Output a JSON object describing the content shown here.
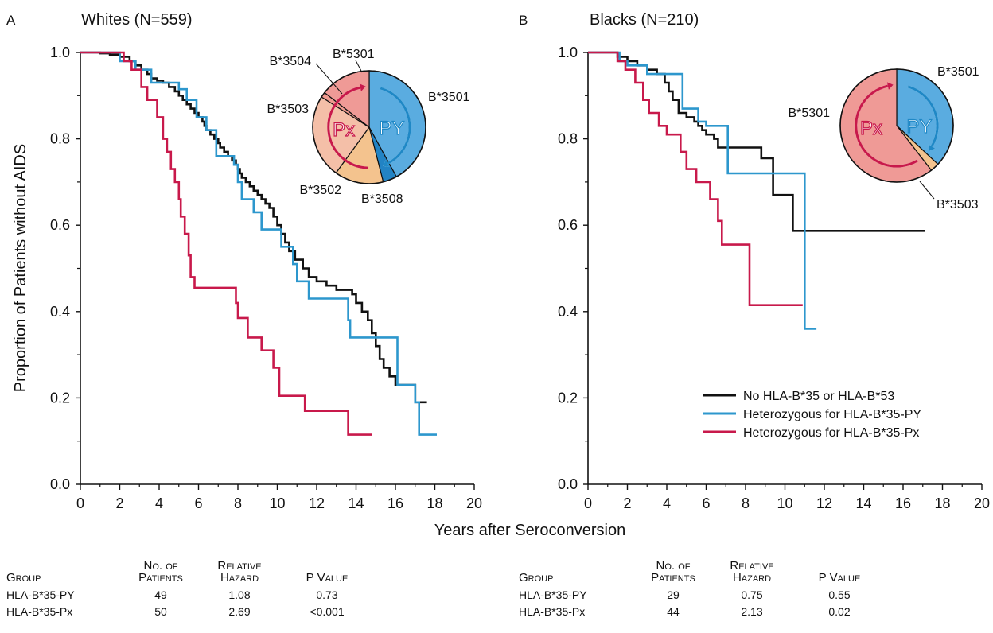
{
  "shared": {
    "ylabel": "Proportion of Patients without AIDS",
    "xlabel": "Years after Seroconversion"
  },
  "legend": {
    "items": [
      {
        "label": "No HLA-B*35 or HLA-B*53",
        "color": "#111111"
      },
      {
        "label": "Heterozygous for HLA-B*35-PY",
        "color": "#2d97cd"
      },
      {
        "label": "Heterozygous for HLA-B*35-Px",
        "color": "#c8194b"
      }
    ]
  },
  "chart_data": [
    {
      "type": "line",
      "panel_letter": "A",
      "title": "Whites (N=559)",
      "xlabel": "Years after Seroconversion",
      "ylabel": "Proportion of Patients without AIDS",
      "xlim": [
        0,
        20
      ],
      "ylim": [
        0,
        1.0
      ],
      "xticks": [
        "0",
        "2",
        "4",
        "6",
        "8",
        "10",
        "12",
        "14",
        "16",
        "18",
        "20"
      ],
      "yticks": [
        "0.0",
        "0.2",
        "0.4",
        "0.6",
        "0.8",
        "1.0"
      ],
      "series": [
        {
          "name": "No HLA-B*35 or HLA-B*53",
          "color": "#111111",
          "x_end": 17.6,
          "steps": [
            [
              0,
              1.0
            ],
            [
              1.0,
              0.998
            ],
            [
              1.5,
              0.995
            ],
            [
              2.0,
              0.99
            ],
            [
              2.5,
              0.98
            ],
            [
              2.8,
              0.97
            ],
            [
              3.1,
              0.96
            ],
            [
              3.4,
              0.95
            ],
            [
              3.6,
              0.94
            ],
            [
              3.9,
              0.935
            ],
            [
              4.2,
              0.93
            ],
            [
              4.5,
              0.92
            ],
            [
              4.8,
              0.91
            ],
            [
              5.0,
              0.9
            ],
            [
              5.2,
              0.89
            ],
            [
              5.4,
              0.88
            ],
            [
              5.6,
              0.87
            ],
            [
              5.8,
              0.86
            ],
            [
              6.0,
              0.85
            ],
            [
              6.2,
              0.84
            ],
            [
              6.3,
              0.83
            ],
            [
              6.4,
              0.82
            ],
            [
              6.6,
              0.81
            ],
            [
              6.8,
              0.8
            ],
            [
              7.0,
              0.79
            ],
            [
              7.1,
              0.78
            ],
            [
              7.3,
              0.77
            ],
            [
              7.5,
              0.76
            ],
            [
              7.7,
              0.75
            ],
            [
              7.9,
              0.74
            ],
            [
              8.0,
              0.73
            ],
            [
              8.1,
              0.72
            ],
            [
              8.2,
              0.71
            ],
            [
              8.4,
              0.7
            ],
            [
              8.6,
              0.69
            ],
            [
              8.8,
              0.68
            ],
            [
              9.0,
              0.67
            ],
            [
              9.2,
              0.66
            ],
            [
              9.4,
              0.65
            ],
            [
              9.6,
              0.64
            ],
            [
              9.8,
              0.62
            ],
            [
              10.0,
              0.6
            ],
            [
              10.2,
              0.58
            ],
            [
              10.4,
              0.56
            ],
            [
              10.6,
              0.54
            ],
            [
              10.9,
              0.52
            ],
            [
              11.3,
              0.5
            ],
            [
              11.6,
              0.48
            ],
            [
              12.0,
              0.47
            ],
            [
              12.5,
              0.46
            ],
            [
              13.0,
              0.45
            ],
            [
              13.8,
              0.44
            ],
            [
              14.0,
              0.42
            ],
            [
              14.3,
              0.4
            ],
            [
              14.6,
              0.38
            ],
            [
              14.8,
              0.35
            ],
            [
              15.0,
              0.32
            ],
            [
              15.2,
              0.29
            ],
            [
              15.4,
              0.27
            ],
            [
              15.7,
              0.25
            ],
            [
              16.0,
              0.23
            ],
            [
              17.0,
              0.19
            ]
          ]
        },
        {
          "name": "Heterozygous for HLA-B*35-PY",
          "color": "#2d97cd",
          "x_end": 18.1,
          "steps": [
            [
              0,
              1.0
            ],
            [
              2.0,
              0.98
            ],
            [
              2.8,
              0.96
            ],
            [
              3.6,
              0.93
            ],
            [
              5.0,
              0.915
            ],
            [
              5.4,
              0.89
            ],
            [
              5.9,
              0.85
            ],
            [
              6.4,
              0.82
            ],
            [
              6.9,
              0.76
            ],
            [
              7.8,
              0.74
            ],
            [
              8.0,
              0.7
            ],
            [
              8.2,
              0.66
            ],
            [
              8.8,
              0.63
            ],
            [
              9.2,
              0.59
            ],
            [
              10.2,
              0.55
            ],
            [
              10.8,
              0.51
            ],
            [
              11.0,
              0.47
            ],
            [
              11.6,
              0.43
            ],
            [
              13.6,
              0.38
            ],
            [
              13.7,
              0.34
            ],
            [
              16.1,
              0.23
            ],
            [
              17.0,
              0.19
            ],
            [
              17.2,
              0.115
            ]
          ]
        },
        {
          "name": "Heterozygous for HLA-B*35-Px",
          "color": "#c8194b",
          "x_end": 14.8,
          "steps": [
            [
              0,
              1.0
            ],
            [
              2.2,
              0.98
            ],
            [
              2.6,
              0.96
            ],
            [
              3.1,
              0.92
            ],
            [
              3.4,
              0.89
            ],
            [
              3.9,
              0.85
            ],
            [
              4.2,
              0.8
            ],
            [
              4.4,
              0.77
            ],
            [
              4.6,
              0.73
            ],
            [
              4.8,
              0.7
            ],
            [
              5.0,
              0.66
            ],
            [
              5.1,
              0.62
            ],
            [
              5.3,
              0.58
            ],
            [
              5.5,
              0.53
            ],
            [
              5.6,
              0.48
            ],
            [
              5.8,
              0.455
            ],
            [
              7.9,
              0.42
            ],
            [
              8.0,
              0.385
            ],
            [
              8.5,
              0.34
            ],
            [
              9.2,
              0.31
            ],
            [
              9.8,
              0.27
            ],
            [
              10.1,
              0.205
            ],
            [
              11.4,
              0.17
            ],
            [
              13.6,
              0.115
            ]
          ]
        }
      ],
      "pie": {
        "orientation": "clockwise from 12 o'clock",
        "slices": [
          {
            "label": "B*3501",
            "value": 42,
            "color": "#5aace0"
          },
          {
            "label": "B*3508",
            "value": 4,
            "color": "#2283c4"
          },
          {
            "label": "B*3502",
            "value": 14,
            "color": "#f4c38e"
          },
          {
            "label": "B*3503",
            "value": 24,
            "color": "#f4bfa8"
          },
          {
            "label": "B*3504",
            "value": 1.5,
            "color": "#ef9a8f"
          },
          {
            "label": "B*5301",
            "value": 14.5,
            "color": "#ef9a96"
          }
        ],
        "group_labels": {
          "py": "PY",
          "px": "Px"
        }
      },
      "table": {
        "headers": [
          [
            "Group"
          ],
          [
            "No. of",
            "Patients"
          ],
          [
            "Relative",
            "Hazard"
          ],
          [
            "P Value"
          ]
        ],
        "rows": [
          [
            "HLA-B*35-PY",
            "49",
            "1.08",
            "0.73"
          ],
          [
            "HLA-B*35-Px",
            "50",
            "2.69",
            "<0.001"
          ]
        ]
      }
    },
    {
      "type": "line",
      "panel_letter": "B",
      "title": "Blacks (N=210)",
      "xlabel": "Years after Seroconversion",
      "ylabel": "",
      "xlim": [
        0,
        20
      ],
      "ylim": [
        0,
        1.0
      ],
      "xticks": [
        "0",
        "2",
        "4",
        "6",
        "8",
        "10",
        "12",
        "14",
        "16",
        "18",
        "20"
      ],
      "yticks": [
        "0.0",
        "0.2",
        "0.4",
        "0.6",
        "0.8",
        "1.0"
      ],
      "series": [
        {
          "name": "No HLA-B*35 or HLA-B*53",
          "color": "#111111",
          "x_end": 17.1,
          "steps": [
            [
              0,
              1.0
            ],
            [
              1.5,
              0.99
            ],
            [
              2.0,
              0.98
            ],
            [
              2.5,
              0.97
            ],
            [
              3.0,
              0.96
            ],
            [
              3.5,
              0.95
            ],
            [
              3.9,
              0.93
            ],
            [
              4.1,
              0.91
            ],
            [
              4.3,
              0.89
            ],
            [
              4.6,
              0.86
            ],
            [
              5.0,
              0.85
            ],
            [
              5.4,
              0.84
            ],
            [
              5.6,
              0.83
            ],
            [
              5.8,
              0.82
            ],
            [
              6.0,
              0.81
            ],
            [
              6.4,
              0.8
            ],
            [
              6.6,
              0.78
            ],
            [
              7.8,
              0.78
            ],
            [
              8.8,
              0.755
            ],
            [
              9.4,
              0.67
            ],
            [
              10.4,
              0.587
            ]
          ]
        },
        {
          "name": "Heterozygous for HLA-B*35-PY",
          "color": "#2d97cd",
          "x_end": 11.6,
          "steps": [
            [
              0,
              1.0
            ],
            [
              1.6,
              0.98
            ],
            [
              2.0,
              0.97
            ],
            [
              3.0,
              0.95
            ],
            [
              4.8,
              0.87
            ],
            [
              5.6,
              0.84
            ],
            [
              6.0,
              0.83
            ],
            [
              7.1,
              0.72
            ],
            [
              11.0,
              0.36
            ]
          ]
        },
        {
          "name": "Heterozygous for HLA-B*35-Px",
          "color": "#c8194b",
          "x_end": 10.9,
          "steps": [
            [
              0,
              1.0
            ],
            [
              1.5,
              0.98
            ],
            [
              1.9,
              0.96
            ],
            [
              2.4,
              0.93
            ],
            [
              2.8,
              0.89
            ],
            [
              3.1,
              0.86
            ],
            [
              3.6,
              0.83
            ],
            [
              4.0,
              0.81
            ],
            [
              4.7,
              0.77
            ],
            [
              5.0,
              0.73
            ],
            [
              5.5,
              0.7
            ],
            [
              6.2,
              0.66
            ],
            [
              6.6,
              0.61
            ],
            [
              6.8,
              0.555
            ],
            [
              8.2,
              0.415
            ]
          ]
        }
      ],
      "pie": {
        "orientation": "clockwise from 12 o'clock",
        "slices": [
          {
            "label": "B*3501",
            "value": 37,
            "color": "#5aace0"
          },
          {
            "label": "B*3503",
            "value": 2.5,
            "color": "#f4c38e"
          },
          {
            "label": "B*5301",
            "value": 60.5,
            "color": "#ef9a96"
          }
        ],
        "group_labels": {
          "py": "PY",
          "px": "Px"
        }
      },
      "table": {
        "headers": [
          [
            "Group"
          ],
          [
            "No. of",
            "Patients"
          ],
          [
            "Relative",
            "Hazard"
          ],
          [
            "P Value"
          ]
        ],
        "rows": [
          [
            "HLA-B*35-PY",
            "29",
            "0.75",
            "0.55"
          ],
          [
            "HLA-B*35-Px",
            "44",
            "2.13",
            "0.02"
          ]
        ]
      }
    }
  ]
}
